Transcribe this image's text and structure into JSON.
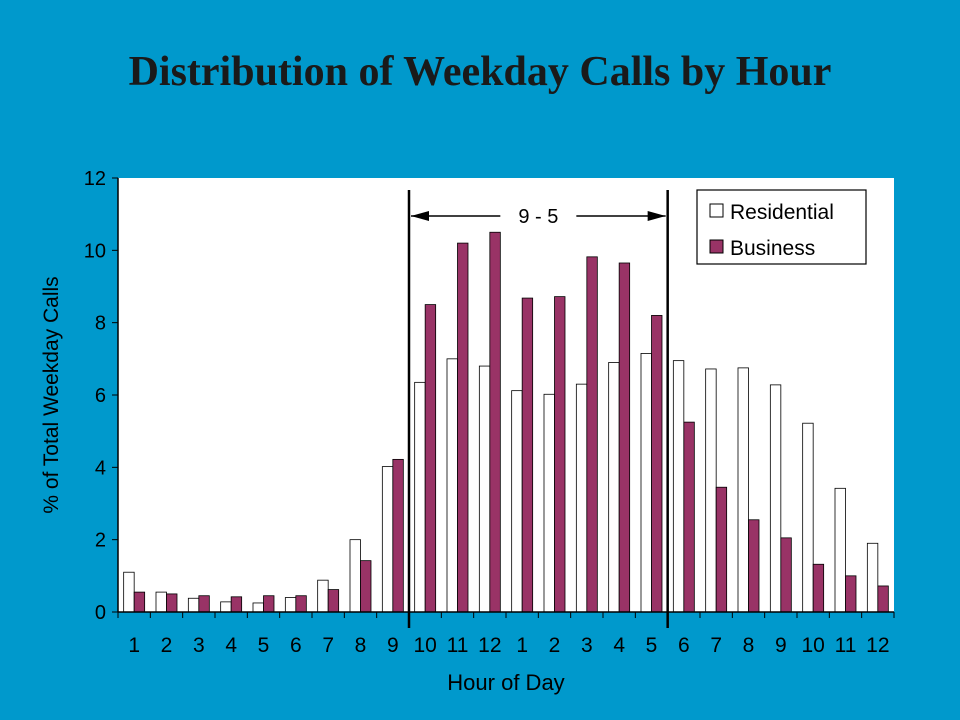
{
  "title": "Distribution of Weekday Calls by Hour",
  "colors": {
    "background": "#0099cc",
    "residential": "#ffffff",
    "business": "#993366"
  },
  "chart_data": {
    "type": "bar",
    "title": "Distribution of Weekday Calls by Hour",
    "xlabel": "Hour of Day",
    "ylabel": "% of Total Weekday Calls",
    "ylim": [
      0,
      12
    ],
    "yticks": [
      0,
      2,
      4,
      6,
      8,
      10,
      12
    ],
    "grid": false,
    "legend": "top-right",
    "categories": [
      "1",
      "2",
      "3",
      "4",
      "5",
      "6",
      "7",
      "8",
      "9",
      "10",
      "11",
      "12",
      "1",
      "2",
      "3",
      "4",
      "5",
      "6",
      "7",
      "8",
      "9",
      "10",
      "11",
      "12"
    ],
    "series": [
      {
        "name": "Residential",
        "color": "#ffffff",
        "values": [
          1.1,
          0.55,
          0.38,
          0.28,
          0.25,
          0.4,
          0.88,
          2.0,
          4.02,
          6.35,
          7.0,
          6.8,
          6.12,
          6.02,
          6.3,
          6.9,
          7.15,
          6.95,
          6.72,
          6.75,
          6.28,
          5.22,
          3.42,
          1.9
        ]
      },
      {
        "name": "Business",
        "color": "#993366",
        "values": [
          0.55,
          0.5,
          0.45,
          0.42,
          0.45,
          0.45,
          0.62,
          1.42,
          4.22,
          8.5,
          10.2,
          10.5,
          8.68,
          8.72,
          9.82,
          9.65,
          8.2,
          5.25,
          3.45,
          2.55,
          2.05,
          1.32,
          1.0,
          0.72
        ]
      }
    ],
    "annotation": {
      "text": "9 - 5",
      "from_index": 9,
      "to_index": 17
    }
  }
}
